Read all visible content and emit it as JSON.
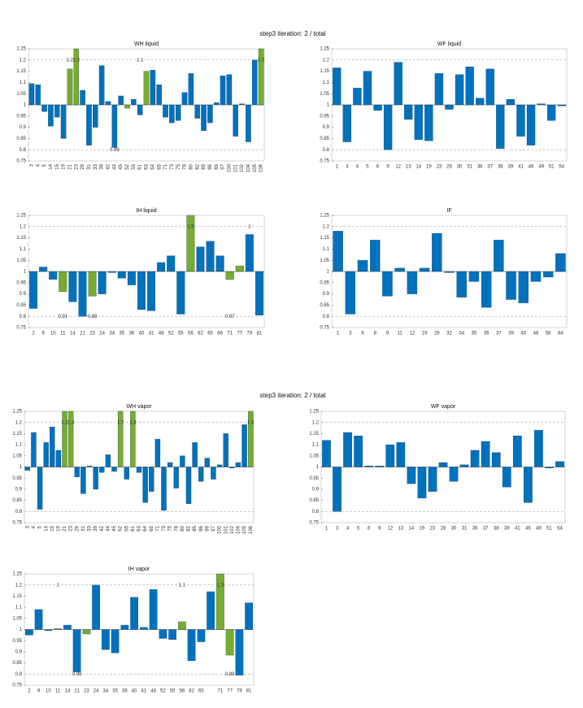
{
  "figure_titles": [
    "step3 iteration: 2 / total",
    "step3 iteration: 2 / total"
  ],
  "chart_data": [
    {
      "type": "bar",
      "title": "WH liquid",
      "baseline": 1,
      "ylim": [
        0.75,
        1.25
      ],
      "yticks": [
        0.75,
        0.8,
        0.85,
        0.9,
        0.95,
        1,
        1.05,
        1.1,
        1.15,
        1.2,
        1.25
      ],
      "ref_lines": [
        0.8,
        1.2
      ],
      "categories": [
        "3",
        "4",
        "5",
        "14",
        "15",
        "19",
        "21",
        "23",
        "29",
        "31",
        "33",
        "38",
        "42",
        "44",
        "45",
        "52",
        "55",
        "61",
        "63",
        "64",
        "65",
        "71",
        "73",
        "75",
        "78",
        "80",
        "82",
        "85",
        "86",
        "89",
        "97",
        "100",
        "101",
        "102",
        "104",
        "105",
        "106"
      ],
      "values": [
        1.095,
        1.09,
        0.97,
        0.905,
        0.945,
        0.85,
        1.16,
        1.25,
        1.065,
        0.82,
        0.9,
        1.175,
        1.015,
        0.81,
        1.04,
        0.985,
        1.025,
        0.955,
        1.15,
        1.155,
        1.09,
        0.945,
        0.92,
        0.93,
        1.055,
        1.14,
        0.94,
        0.885,
        0.92,
        1.01,
        1.13,
        1.135,
        0.86,
        1.005,
        0.835,
        1.2,
        1.25
      ],
      "colors": [
        "#0072bd",
        "#0072bd",
        "#0072bd",
        "#0072bd",
        "#0072bd",
        "#0072bd",
        "#77ac30",
        "#77ac30",
        "#0072bd",
        "#0072bd",
        "#0072bd",
        "#0072bd",
        "#0072bd",
        "#0072bd",
        "#0072bd",
        "#77ac30",
        "#0072bd",
        "#0072bd",
        "#77ac30",
        "#0072bd",
        "#0072bd",
        "#0072bd",
        "#0072bd",
        "#0072bd",
        "#0072bd",
        "#0072bd",
        "#0072bd",
        "#0072bd",
        "#0072bd",
        "#0072bd",
        "#0072bd",
        "#0072bd",
        "#0072bd",
        "#0072bd",
        "#0072bd",
        "#0072bd",
        "#77ac30"
      ],
      "annotations": [
        {
          "text": "1.2",
          "category": "21",
          "y": 1.2
        },
        {
          "text": "1.3",
          "category": "23",
          "y": 1.2
        },
        {
          "text": "1.1",
          "category": "61",
          "y": 1.2
        },
        {
          "text": "0.99",
          "category": "44",
          "y": 0.8
        },
        {
          "text": "1.3",
          "category": "106",
          "y": 1.2
        }
      ]
    },
    {
      "type": "bar",
      "title": "WF liquid",
      "baseline": 1,
      "ylim": [
        0.75,
        1.25
      ],
      "yticks": [
        0.75,
        0.8,
        0.85,
        0.9,
        0.95,
        1,
        1.05,
        1.1,
        1.15,
        1.2,
        1.25
      ],
      "ref_lines": [
        0.8,
        1.2
      ],
      "categories": [
        "1",
        "3",
        "4",
        "5",
        "6",
        "9",
        "12",
        "13",
        "14",
        "19",
        "23",
        "28",
        "30",
        "31",
        "36",
        "37",
        "38",
        "39",
        "41",
        "46",
        "49",
        "51",
        "54"
      ],
      "values": [
        1.165,
        0.835,
        1.075,
        1.15,
        0.975,
        0.8,
        1.19,
        0.935,
        0.845,
        0.84,
        1.14,
        0.98,
        1.135,
        1.17,
        1.03,
        1.16,
        0.805,
        1.025,
        0.86,
        0.82,
        1.005,
        0.93,
        0.995
      ],
      "colors": [
        "#0072bd",
        "#0072bd",
        "#0072bd",
        "#0072bd",
        "#0072bd",
        "#0072bd",
        "#0072bd",
        "#0072bd",
        "#0072bd",
        "#0072bd",
        "#0072bd",
        "#0072bd",
        "#0072bd",
        "#0072bd",
        "#0072bd",
        "#0072bd",
        "#0072bd",
        "#0072bd",
        "#0072bd",
        "#0072bd",
        "#0072bd",
        "#0072bd",
        "#0072bd"
      ],
      "annotations": []
    },
    {
      "type": "bar",
      "title": "IH liquid",
      "baseline": 1,
      "ylim": [
        0.75,
        1.25
      ],
      "yticks": [
        0.75,
        0.8,
        0.85,
        0.9,
        0.95,
        1,
        1.05,
        1.1,
        1.15,
        1.2,
        1.25
      ],
      "ref_lines": [
        0.8,
        1.2
      ],
      "categories": [
        "2",
        "9",
        "10",
        "11",
        "14",
        "21",
        "23",
        "24",
        "34",
        "35",
        "36",
        "40",
        "41",
        "48",
        "52",
        "55",
        "56",
        "62",
        "65",
        "66",
        "71",
        "77",
        "79",
        "81"
      ],
      "values": [
        0.835,
        1.02,
        0.965,
        0.91,
        0.865,
        0.8,
        0.89,
        0.9,
        0.995,
        0.97,
        0.94,
        0.83,
        0.825,
        1.04,
        1.07,
        0.81,
        1.25,
        1.11,
        1.135,
        1.07,
        0.965,
        1.025,
        1.165,
        0.805
      ],
      "colors": [
        "#0072bd",
        "#0072bd",
        "#0072bd",
        "#77ac30",
        "#0072bd",
        "#0072bd",
        "#77ac30",
        "#0072bd",
        "#0072bd",
        "#0072bd",
        "#0072bd",
        "#0072bd",
        "#0072bd",
        "#0072bd",
        "#0072bd",
        "#0072bd",
        "#77ac30",
        "#0072bd",
        "#0072bd",
        "#0072bd",
        "#77ac30",
        "#77ac30",
        "#0072bd",
        "#0072bd"
      ],
      "annotations": [
        {
          "text": "0.91",
          "category": "11",
          "y": 0.8
        },
        {
          "text": "0.89",
          "category": "23",
          "y": 0.8
        },
        {
          "text": "1.5",
          "category": "56",
          "y": 1.2
        },
        {
          "text": "0.97",
          "category": "71",
          "y": 0.8
        },
        {
          "text": "1",
          "category": "79",
          "y": 1.2
        }
      ]
    },
    {
      "type": "bar",
      "title": "IF",
      "baseline": 1,
      "ylim": [
        0.75,
        1.25
      ],
      "yticks": [
        0.75,
        0.8,
        0.85,
        0.9,
        0.95,
        1,
        1.05,
        1.1,
        1.15,
        1.2,
        1.25
      ],
      "ref_lines": [
        0.8,
        1.2
      ],
      "categories": [
        "1",
        "3",
        "6",
        "8",
        "9",
        "11",
        "12",
        "19",
        "28",
        "32",
        "34",
        "35",
        "36",
        "37",
        "39",
        "40",
        "48",
        "58",
        "64"
      ],
      "values": [
        1.18,
        0.81,
        1.05,
        1.14,
        0.89,
        1.015,
        0.9,
        1.015,
        1.17,
        0.995,
        0.885,
        0.955,
        0.84,
        1.14,
        0.875,
        0.86,
        0.955,
        0.975,
        1.08
      ],
      "colors": [
        "#0072bd",
        "#0072bd",
        "#0072bd",
        "#0072bd",
        "#0072bd",
        "#0072bd",
        "#0072bd",
        "#0072bd",
        "#0072bd",
        "#0072bd",
        "#0072bd",
        "#0072bd",
        "#0072bd",
        "#0072bd",
        "#0072bd",
        "#0072bd",
        "#0072bd",
        "#0072bd",
        "#0072bd"
      ],
      "annotations": []
    },
    {
      "type": "bar",
      "title": "WH vapor",
      "baseline": 1,
      "ylim": [
        0.75,
        1.25
      ],
      "yticks": [
        0.75,
        0.8,
        0.85,
        0.9,
        0.95,
        1,
        1.05,
        1.1,
        1.15,
        1.2,
        1.25
      ],
      "ref_lines": [
        0.8,
        1.2
      ],
      "categories": [
        "3",
        "4",
        "5",
        "14",
        "15",
        "19",
        "21",
        "23",
        "29",
        "31",
        "33",
        "38",
        "42",
        "44",
        "45",
        "52",
        "55",
        "61",
        "63",
        "64",
        "65",
        "71",
        "73",
        "75",
        "78",
        "80",
        "82",
        "85",
        "86",
        "89",
        "97",
        "100",
        "101",
        "102",
        "104",
        "105",
        "106"
      ],
      "values": [
        0.985,
        1.155,
        0.81,
        1.11,
        1.18,
        1.075,
        1.25,
        1.25,
        0.955,
        0.88,
        1.005,
        0.9,
        0.975,
        1.055,
        0.98,
        1.25,
        0.945,
        1.25,
        0.975,
        0.84,
        0.89,
        1.125,
        0.805,
        1.02,
        0.905,
        1.05,
        0.835,
        1.11,
        0.935,
        1.04,
        0.945,
        1.01,
        1.15,
        0.995,
        1.02,
        1.19,
        1.25
      ],
      "colors": [
        "#0072bd",
        "#0072bd",
        "#0072bd",
        "#0072bd",
        "#0072bd",
        "#0072bd",
        "#77ac30",
        "#77ac30",
        "#0072bd",
        "#0072bd",
        "#0072bd",
        "#0072bd",
        "#0072bd",
        "#0072bd",
        "#0072bd",
        "#77ac30",
        "#0072bd",
        "#77ac30",
        "#0072bd",
        "#0072bd",
        "#0072bd",
        "#0072bd",
        "#0072bd",
        "#0072bd",
        "#0072bd",
        "#0072bd",
        "#0072bd",
        "#0072bd",
        "#0072bd",
        "#0072bd",
        "#0072bd",
        "#0072bd",
        "#0072bd",
        "#0072bd",
        "#0072bd",
        "#0072bd",
        "#77ac30"
      ],
      "annotations": [
        {
          "text": "1.2",
          "category": "21",
          "y": 1.2
        },
        {
          "text": "1.3",
          "category": "23",
          "y": 1.2
        },
        {
          "text": "1.7",
          "category": "52",
          "y": 1.2
        },
        {
          "text": "1.3",
          "category": "61",
          "y": 1.2
        },
        {
          "text": "1.3",
          "category": "106",
          "y": 1.2
        }
      ]
    },
    {
      "type": "bar",
      "title": "WF vapor",
      "baseline": 1,
      "ylim": [
        0.75,
        1.25
      ],
      "yticks": [
        0.75,
        0.8,
        0.85,
        0.9,
        0.95,
        1,
        1.05,
        1.1,
        1.15,
        1.2,
        1.25
      ],
      "ref_lines": [
        0.8,
        1.2
      ],
      "categories": [
        "1",
        "3",
        "4",
        "5",
        "6",
        "9",
        "12",
        "13",
        "14",
        "19",
        "23",
        "28",
        "30",
        "31",
        "36",
        "37",
        "38",
        "39",
        "41",
        "46",
        "49",
        "51",
        "54"
      ],
      "values": [
        1.12,
        0.8,
        1.155,
        1.14,
        1.005,
        1.005,
        1.1,
        1.11,
        0.925,
        0.86,
        0.89,
        1.02,
        0.935,
        1.01,
        1.075,
        1.115,
        1.065,
        0.91,
        1.14,
        0.84,
        1.165,
        0.995,
        1.025
      ],
      "colors": [
        "#0072bd",
        "#0072bd",
        "#0072bd",
        "#0072bd",
        "#0072bd",
        "#0072bd",
        "#0072bd",
        "#0072bd",
        "#0072bd",
        "#0072bd",
        "#0072bd",
        "#0072bd",
        "#0072bd",
        "#0072bd",
        "#0072bd",
        "#0072bd",
        "#0072bd",
        "#0072bd",
        "#0072bd",
        "#0072bd",
        "#0072bd",
        "#0072bd",
        "#0072bd"
      ],
      "annotations": []
    },
    {
      "type": "bar",
      "title": "IH vapor",
      "baseline": 1,
      "ylim": [
        0.75,
        1.25
      ],
      "yticks": [
        0.75,
        0.8,
        0.85,
        0.9,
        0.95,
        1,
        1.05,
        1.1,
        1.15,
        1.2,
        1.25
      ],
      "ref_lines": [
        0.8,
        1.2
      ],
      "categories": [
        "2",
        "9",
        "10",
        "11",
        "14",
        "21",
        "23",
        "24",
        "34",
        "35",
        "36",
        "40",
        "41",
        "48",
        "52",
        "55",
        "56",
        "62",
        "65",
        null,
        "71",
        "77",
        "79",
        "81"
      ],
      "values": [
        0.975,
        1.09,
        0.995,
        1.005,
        1.02,
        0.81,
        0.98,
        1.2,
        0.91,
        0.895,
        1.02,
        1.145,
        1.01,
        1.18,
        0.96,
        0.955,
        1.035,
        0.86,
        0.945,
        1.17,
        1.25,
        0.885,
        0.795,
        1.12
      ],
      "colors": [
        "#0072bd",
        "#0072bd",
        "#0072bd",
        "#77ac30",
        "#0072bd",
        "#0072bd",
        "#77ac30",
        "#0072bd",
        "#0072bd",
        "#0072bd",
        "#0072bd",
        "#0072bd",
        "#0072bd",
        "#0072bd",
        "#0072bd",
        "#0072bd",
        "#77ac30",
        "#0072bd",
        "#0072bd",
        "#0072bd",
        "#77ac30",
        "#77ac30",
        "#0072bd",
        "#0072bd"
      ],
      "annotations": [
        {
          "text": "1",
          "category": "11",
          "y": 1.2
        },
        {
          "text": "0.98",
          "category": "21",
          "y": 0.8
        },
        {
          "text": "1.1",
          "category": "56",
          "y": 1.2
        },
        {
          "text": "1.3",
          "category": "71",
          "y": 1.2
        },
        {
          "text": "0.89",
          "category": "77",
          "y": 0.8
        }
      ]
    }
  ]
}
